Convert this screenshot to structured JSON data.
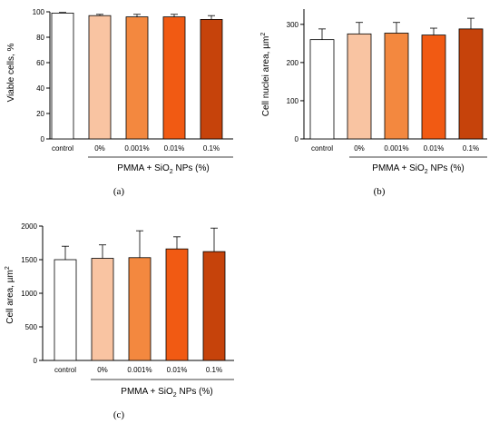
{
  "chart_data": [
    {
      "type": "bar",
      "panel_label": "(a)",
      "categories": [
        "control",
        "0%",
        "0.001%",
        "0.01%",
        "0.1%"
      ],
      "values": [
        99,
        97,
        96,
        96,
        94
      ],
      "errors": [
        0.5,
        1,
        2,
        2,
        3
      ],
      "colors": [
        "#ffffff",
        "#f9c4a2",
        "#f3883f",
        "#f15a13",
        "#c6430b"
      ],
      "ylabel": "Viable cells, %",
      "ylim": [
        0,
        100
      ],
      "yticks": [
        "0",
        "20",
        "40",
        "60",
        "80",
        "100"
      ],
      "group_label_main": "PMMA + SiO",
      "group_label_sub": "2",
      "group_label_tail": " NPs (%)"
    },
    {
      "type": "bar",
      "panel_label": "(b)",
      "categories": [
        "control",
        "0%",
        "0.001%",
        "0.01%",
        "0.1%"
      ],
      "values": [
        260,
        275,
        277,
        272,
        288
      ],
      "errors": [
        28,
        30,
        28,
        18,
        28
      ],
      "colors": [
        "#ffffff",
        "#f9c4a2",
        "#f3883f",
        "#f15a13",
        "#c6430b"
      ],
      "ylabel_main": "Cell nuclei area, µm",
      "ylabel_sup": "2",
      "ylim": [
        0,
        340
      ],
      "yticks": [
        "0",
        "100",
        "200",
        "300"
      ],
      "group_label_main": "PMMA + SiO",
      "group_label_sub": "2",
      "group_label_tail": " NPs (%)"
    },
    {
      "type": "bar",
      "panel_label": "(c)",
      "categories": [
        "control",
        "0%",
        "0.001%",
        "0.01%",
        "0.1%"
      ],
      "values": [
        1500,
        1520,
        1530,
        1660,
        1620
      ],
      "errors": [
        200,
        200,
        400,
        180,
        350
      ],
      "colors": [
        "#ffffff",
        "#f9c4a2",
        "#f3883f",
        "#f15a13",
        "#c6430b"
      ],
      "ylabel_main": "Cell area, µm",
      "ylabel_sup": "2",
      "ylim": [
        0,
        2000
      ],
      "yticks": [
        "0",
        "500",
        "1000",
        "1500",
        "2000"
      ],
      "group_label_main": "PMMA + SiO",
      "group_label_sub": "2",
      "group_label_tail": " NPs (%)"
    }
  ]
}
